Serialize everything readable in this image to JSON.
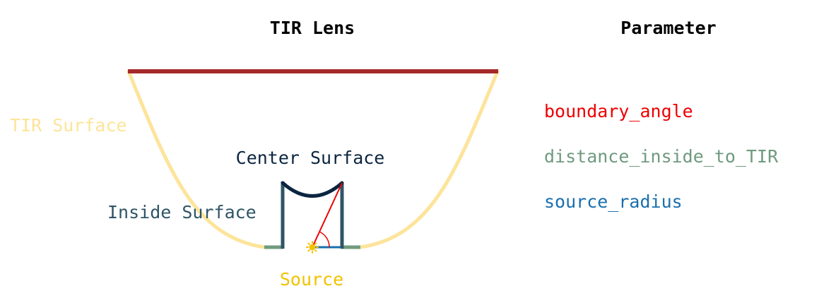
{
  "titles": {
    "lens": "TIR Lens",
    "parameter": "Parameter"
  },
  "labels": {
    "tir_surface": "TIR Surface",
    "center_surface": "Center Surface",
    "inside_surface": "Inside Surface",
    "source": "Source"
  },
  "parameters": [
    {
      "name": "boundary_angle",
      "color": "#ee0000"
    },
    {
      "name": "distance_inside_to_TIR",
      "color": "#6f9a7e"
    },
    {
      "name": "source_radius",
      "color": "#1a6fae"
    }
  ],
  "colors": {
    "top_surface": "#a52a2a",
    "tir_surface": "#fde49a",
    "center_surface": "#0b2540",
    "inside_surface": "#2f5566",
    "gap_segment": "#6f9a7e",
    "source": "#f2c200",
    "source_radius": "#1a6fae",
    "boundary_angle": "#ee0000",
    "title": "#000000"
  }
}
